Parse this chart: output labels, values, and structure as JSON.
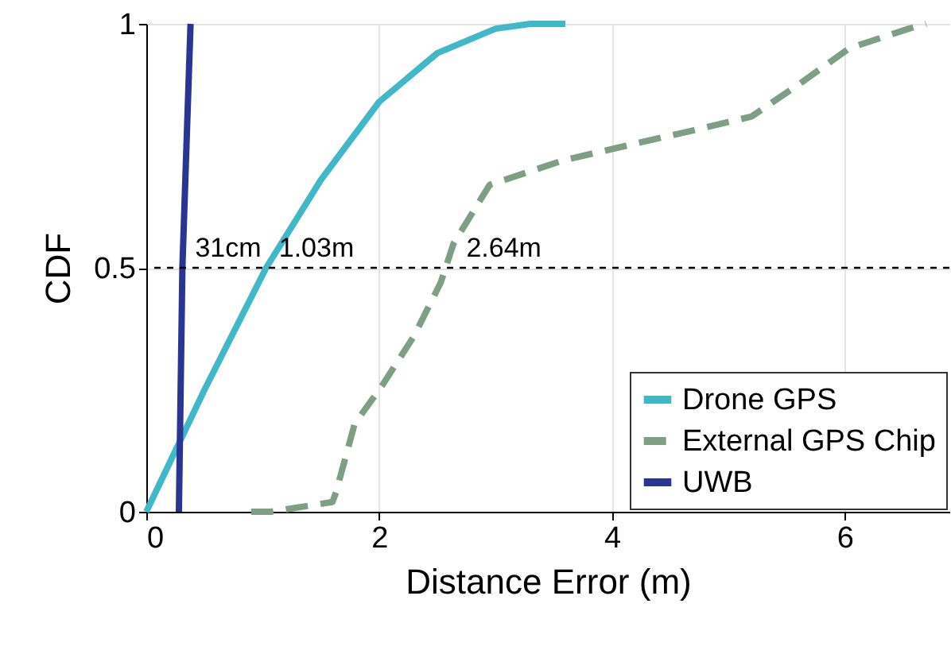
{
  "chart_data": {
    "type": "line",
    "xlabel": "Distance Error (m)",
    "ylabel": "CDF",
    "xlim": [
      0,
      6.9
    ],
    "ylim": [
      0,
      1
    ],
    "xticks": [
      0,
      2,
      4,
      6
    ],
    "yticks": [
      0,
      0.5,
      1
    ],
    "grid": true,
    "legend": "bottom right",
    "series": [
      {
        "name": "Drone GPS",
        "color": "#40b8c8",
        "line_style": "solid",
        "x": [
          0,
          0.5,
          1.03,
          1.5,
          2,
          2.5,
          3,
          3.3,
          3.6
        ],
        "values": [
          0,
          0.25,
          0.5,
          0.68,
          0.84,
          0.94,
          0.99,
          1,
          1
        ]
      },
      {
        "name": "External GPS Chip",
        "color": "#7f9f85",
        "line_style": "dashed",
        "x": [
          0.9,
          1.07,
          1.6,
          1.63,
          1.79,
          2.03,
          2.3,
          2.53,
          2.64,
          2.95,
          3.58,
          4.12,
          4.67,
          5.2,
          5.63,
          6.04,
          6.55,
          6.7
        ],
        "values": [
          0,
          0,
          0.02,
          0.04,
          0.18,
          0.26,
          0.36,
          0.47,
          0.55,
          0.67,
          0.72,
          0.75,
          0.78,
          0.81,
          0.88,
          0.95,
          0.99,
          1
        ]
      },
      {
        "name": "UWB",
        "color": "#2a3593",
        "line_style": "solid",
        "x": [
          0.28,
          0.31,
          0.38
        ],
        "values": [
          0,
          0.5,
          1
        ]
      }
    ],
    "ref_lines": [
      {
        "axis": "y",
        "value": 0.5,
        "line_style": "dashed",
        "color": "#000000"
      }
    ],
    "annotations": [
      {
        "text": "31cm",
        "x": 0.31,
        "y": 0.5
      },
      {
        "text": "1.03m",
        "x": 1.03,
        "y": 0.5
      },
      {
        "text": "2.64m",
        "x": 2.64,
        "y": 0.5
      }
    ]
  }
}
